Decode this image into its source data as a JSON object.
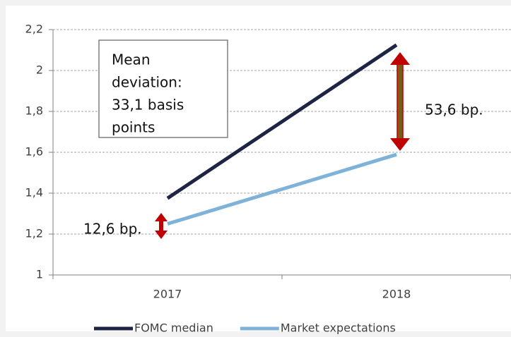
{
  "chart_data": {
    "type": "line",
    "categories": [
      "2017",
      "2018"
    ],
    "series": [
      {
        "name": "FOMC median",
        "color": "#1f2444",
        "values": [
          1.375,
          2.125
        ]
      },
      {
        "name": "Market expectations",
        "color": "#7fb2d9",
        "values": [
          1.25,
          1.589
        ]
      }
    ],
    "ylim": [
      1,
      2.2
    ],
    "yticks": [
      1,
      {
        "value": 1.2,
        "label": "1,2"
      },
      {
        "value": 1.4,
        "label": "1,4"
      },
      {
        "value": 1.6,
        "label": "1,6"
      },
      {
        "value": 1.8,
        "label": "1,8"
      },
      2,
      {
        "value": 2.2,
        "label": "2,2"
      }
    ],
    "grid": true,
    "legend": "bottom",
    "annotations": {
      "box": [
        "Mean",
        "deviation:",
        "33,1 basis",
        "points"
      ],
      "gap_2018": "53,6 bp.",
      "gap_2017": "12,6 bp."
    }
  }
}
